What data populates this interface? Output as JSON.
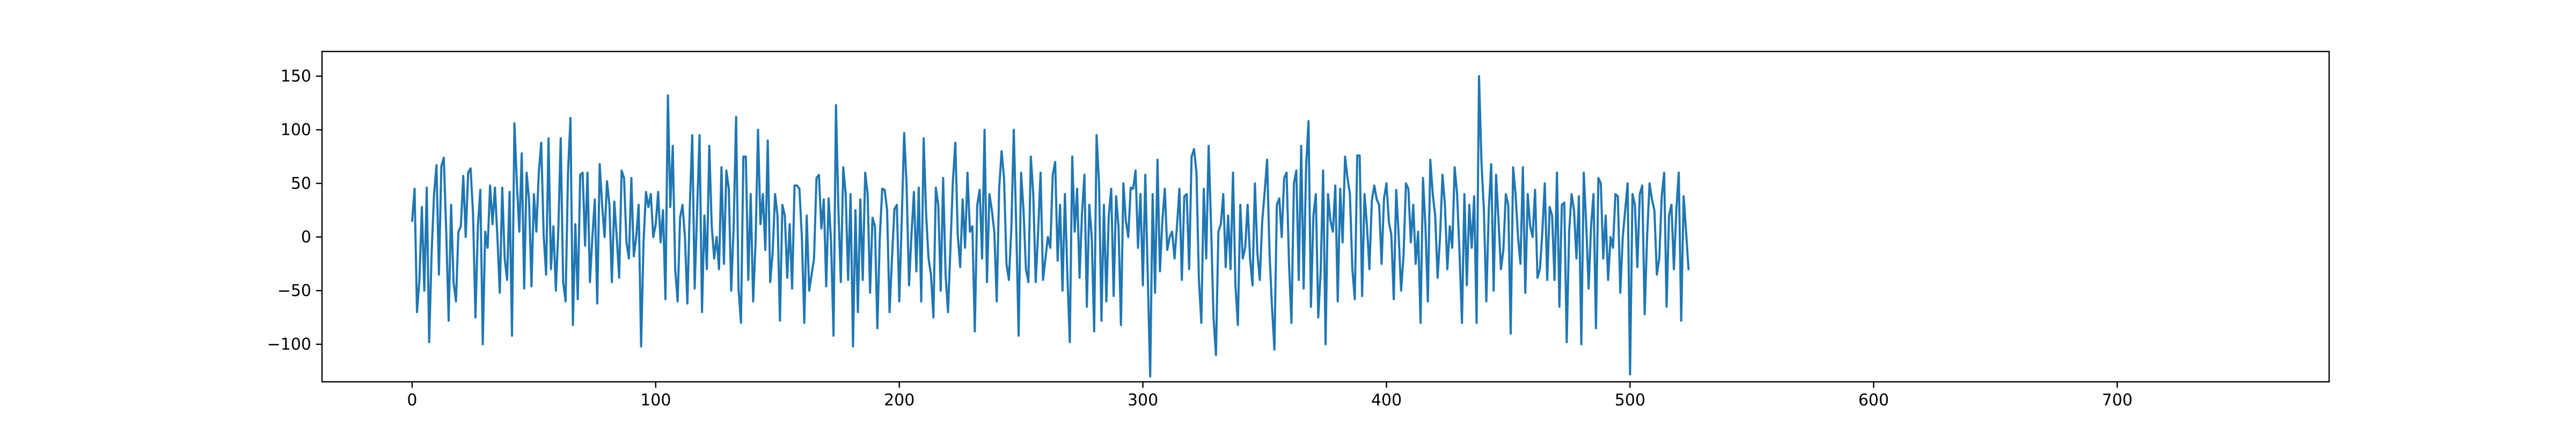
{
  "chart_data": {
    "type": "line",
    "title": "",
    "xlabel": "",
    "ylabel": "",
    "xlim": [
      -37,
      787
    ],
    "ylim": [
      -135,
      173
    ],
    "xticks": [
      0,
      100,
      200,
      300,
      400,
      500,
      600,
      700
    ],
    "xtick_labels": [
      "0",
      "100",
      "200",
      "300",
      "400",
      "500",
      "600",
      "700"
    ],
    "yticks": [
      -100,
      -50,
      0,
      50,
      100,
      150
    ],
    "ytick_labels": [
      "−100",
      "−50",
      "0",
      "50",
      "100",
      "150"
    ],
    "grid": false,
    "legend": "none",
    "series": [
      {
        "color": "#1f77b4",
        "x_start": 0,
        "x_step": 1,
        "values": [
          15,
          45,
          -70,
          -40,
          28,
          -50,
          46,
          -98,
          -15,
          40,
          67,
          -35,
          66,
          74,
          5,
          -78,
          30,
          -42,
          -60,
          5,
          10,
          57,
          0,
          60,
          64,
          22,
          -75,
          10,
          44,
          -100,
          5,
          -10,
          48,
          12,
          46,
          0,
          -52,
          46,
          -20,
          -40,
          42,
          -92,
          106,
          50,
          5,
          78,
          -48,
          60,
          35,
          -46,
          40,
          5,
          60,
          88,
          2,
          -35,
          92,
          -30,
          10,
          -50,
          5,
          92,
          -42,
          -60,
          60,
          111,
          -82,
          12,
          -58,
          58,
          60,
          -8,
          60,
          -42,
          0,
          35,
          -62,
          68,
          30,
          0,
          52,
          30,
          -42,
          33,
          0,
          -38,
          62,
          55,
          -5,
          -20,
          55,
          -18,
          0,
          30,
          -102,
          -5,
          42,
          28,
          40,
          0,
          12,
          42,
          -5,
          25,
          -58,
          132,
          28,
          85,
          -30,
          -60,
          18,
          30,
          0,
          -62,
          28,
          95,
          -48,
          25,
          95,
          -70,
          20,
          -30,
          85,
          10,
          -20,
          0,
          -30,
          65,
          -25,
          62,
          45,
          -50,
          10,
          112,
          -48,
          -80,
          75,
          75,
          -40,
          40,
          -60,
          -5,
          100,
          12,
          40,
          -12,
          90,
          -42,
          -15,
          40,
          20,
          -78,
          30,
          20,
          -38,
          12,
          -48,
          48,
          48,
          45,
          0,
          -80,
          20,
          -50,
          -35,
          -20,
          55,
          58,
          8,
          35,
          -46,
          36,
          -5,
          -92,
          123,
          26,
          -42,
          65,
          40,
          -40,
          40,
          -102,
          25,
          -70,
          35,
          -40,
          60,
          40,
          -52,
          18,
          10,
          -85,
          0,
          45,
          44,
          25,
          -70,
          -20,
          26,
          30,
          -60,
          15,
          97,
          48,
          -45,
          2,
          42,
          -32,
          46,
          -60,
          92,
          22,
          -20,
          -35,
          -75,
          46,
          30,
          -50,
          55,
          -35,
          -70,
          -10,
          52,
          88,
          2,
          -28,
          35,
          -10,
          60,
          5,
          10,
          -88,
          30,
          44,
          -20,
          100,
          -42,
          40,
          25,
          5,
          -60,
          45,
          80,
          55,
          -25,
          -40,
          8,
          100,
          10,
          -92,
          60,
          25,
          -30,
          -42,
          75,
          40,
          -42,
          5,
          60,
          -40,
          -20,
          0,
          -10,
          58,
          70,
          -22,
          30,
          -50,
          40,
          -35,
          -98,
          75,
          5,
          45,
          -38,
          22,
          58,
          -65,
          30,
          0,
          -88,
          95,
          50,
          -78,
          30,
          -60,
          20,
          45,
          -55,
          38,
          10,
          -82,
          50,
          15,
          0,
          46,
          45,
          62,
          -10,
          40,
          -45,
          58,
          -36,
          -130,
          40,
          -52,
          72,
          -32,
          15,
          45,
          -12,
          0,
          5,
          -20,
          10,
          45,
          -40,
          38,
          40,
          -30,
          75,
          82,
          60,
          -40,
          -80,
          45,
          -20,
          85,
          10,
          -75,
          -110,
          5,
          12,
          40,
          -28,
          20,
          -30,
          60,
          -45,
          -82,
          30,
          -20,
          -10,
          30,
          -20,
          -45,
          50,
          -15,
          -40,
          15,
          42,
          72,
          -15,
          -65,
          -105,
          30,
          36,
          0,
          55,
          60,
          -25,
          -80,
          50,
          62,
          -40,
          85,
          -48,
          65,
          108,
          -65,
          20,
          40,
          -75,
          -32,
          62,
          -100,
          40,
          15,
          5,
          48,
          -60,
          45,
          -5,
          75,
          55,
          40,
          -30,
          -58,
          76,
          76,
          -55,
          40,
          10,
          -30,
          34,
          48,
          35,
          30,
          -25,
          36,
          50,
          14,
          2,
          -58,
          44,
          2,
          -50,
          -18,
          50,
          45,
          -5,
          30,
          -25,
          5,
          -80,
          55,
          10,
          -60,
          72,
          40,
          20,
          -38,
          0,
          58,
          30,
          -30,
          10,
          -10,
          65,
          40,
          -15,
          -80,
          40,
          -45,
          30,
          -10,
          38,
          -80,
          150,
          70,
          25,
          -60,
          25,
          68,
          -50,
          58,
          15,
          -30,
          -12,
          40,
          30,
          -90,
          65,
          40,
          0,
          -25,
          65,
          -52,
          40,
          10,
          0,
          44,
          -38,
          -30,
          5,
          50,
          -40,
          28,
          20,
          -40,
          60,
          -65,
          30,
          32,
          -98,
          5,
          40,
          25,
          -20,
          38,
          -100,
          60,
          12,
          -48,
          10,
          40,
          -85,
          55,
          50,
          -20,
          20,
          -40,
          0,
          -10,
          40,
          38,
          -52,
          0,
          25,
          50,
          -128,
          40,
          30,
          -28,
          40,
          48,
          -72,
          0,
          50,
          35,
          25,
          -35,
          -20,
          38,
          60,
          -65,
          20,
          30,
          -30,
          25,
          60,
          -78,
          38,
          5,
          -30
        ]
      }
    ]
  }
}
